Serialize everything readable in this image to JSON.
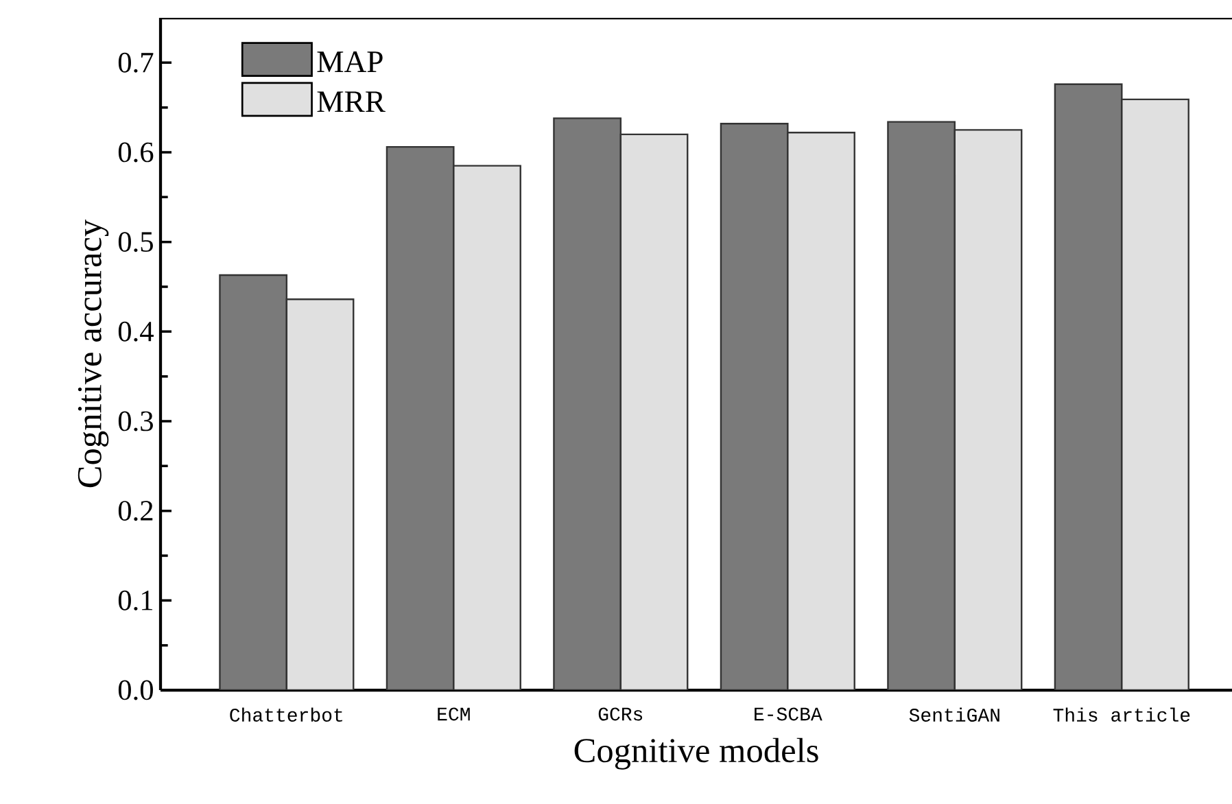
{
  "chart_data": {
    "type": "bar",
    "xlabel": "Cognitive models",
    "ylabel": "Cognitive accuracy",
    "categories": [
      "Chatterbot",
      "ECM",
      "GCRs",
      "E-SCBA",
      "SentiGAN",
      "This article"
    ],
    "series": [
      {
        "name": "MAP",
        "color": "#7a7a7a",
        "values": [
          0.463,
          0.606,
          0.638,
          0.632,
          0.634,
          0.676
        ]
      },
      {
        "name": "MRR",
        "color": "#e0e0e0",
        "values": [
          0.436,
          0.585,
          0.62,
          0.622,
          0.625,
          0.659
        ]
      }
    ],
    "ylim": [
      0,
      0.75
    ],
    "yticks": [
      {
        "value": 0,
        "label": "0.0"
      },
      0.1,
      0.2,
      0.3,
      0.4,
      0.5,
      0.6,
      0.7
    ],
    "grid": false,
    "legend": "top left"
  }
}
